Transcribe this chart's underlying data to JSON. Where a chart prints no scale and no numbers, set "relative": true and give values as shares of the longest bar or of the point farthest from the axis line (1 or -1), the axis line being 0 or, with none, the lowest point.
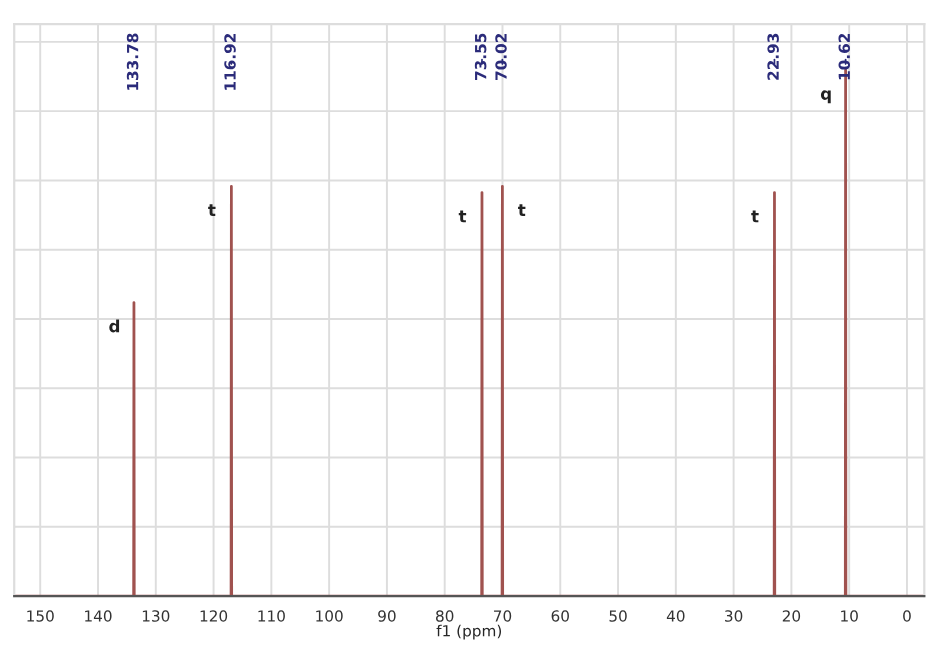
{
  "chart_data": {
    "type": "line",
    "relative": true,
    "xlabel": "f1 (ppm)",
    "xlim": [
      154.5,
      -3
    ],
    "xticks": [
      150,
      140,
      130,
      120,
      110,
      100,
      90,
      80,
      70,
      60,
      50,
      40,
      30,
      20,
      10,
      0
    ],
    "grid": true,
    "marker": "none",
    "line_style": "solid",
    "series": [
      {
        "color": "#a0524f",
        "x": [
          154.5,
          133.83,
          133.78,
          133.73,
          116.97,
          116.92,
          116.87,
          73.6,
          73.55,
          73.5,
          70.07,
          70.02,
          69.97,
          22.98,
          22.93,
          22.88,
          10.67,
          10.62,
          10.57,
          -3
        ],
        "values": [
          0,
          0,
          0.558,
          0,
          0,
          0.779,
          0,
          0,
          0.767,
          0,
          0,
          0.779,
          0,
          0,
          0.767,
          0,
          0,
          1,
          0,
          0
        ]
      }
    ],
    "annotations": [
      "133.78",
      "116.92",
      "73.55",
      "70.02",
      "22.93",
      "10.62",
      {
        "text": "d",
        "x": 133.78,
        "y": 0.558
      },
      {
        "text": "t",
        "x": 116.92,
        "y": 0.779
      },
      {
        "text": "t",
        "x": 73.55,
        "y": 0.767
      },
      {
        "text": "t",
        "x": 70.02,
        "y": 0.779
      },
      {
        "text": "t",
        "x": 22.93,
        "y": 0.767
      },
      {
        "text": "q",
        "x": 10.62,
        "y": 1
      }
    ]
  }
}
